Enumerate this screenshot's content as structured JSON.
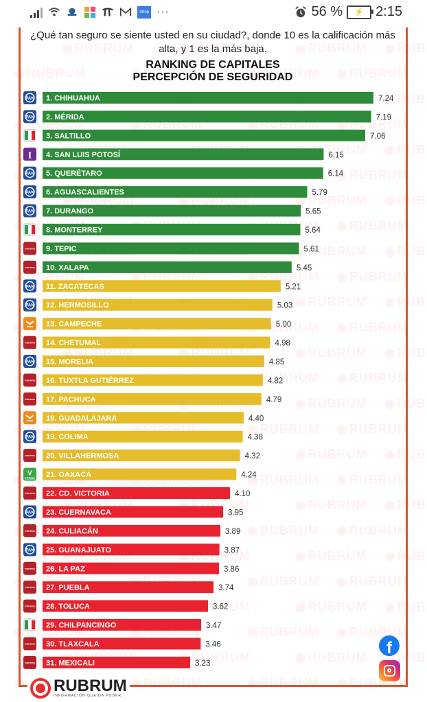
{
  "status_bar": {
    "battery_percent": "56 %",
    "time": "2:15",
    "icons": [
      "signal-icon",
      "wifi-icon",
      "app-icon",
      "grid-app-icon",
      "app-icon",
      "gmail-icon",
      "shop-icon",
      "more-icon",
      "alarm-icon",
      "battery-charging-icon"
    ],
    "shop_label": "Shop",
    "more_label": "···",
    "battery_glyph": "⚡"
  },
  "header": {
    "question": "¿Qué tan seguro se siente usted en su ciudad?, donde 10 es la calificación más alta, y  1 es la más baja.",
    "title_line1": "RANKING DE CAPITALES",
    "title_line2": "PERCEPCIÓN DE SEGURIDAD"
  },
  "watermark": "RUBRUM",
  "colors": {
    "green": "#2e8b3a",
    "yellow": "#e5bd2b",
    "red": "#e8232f",
    "frame": "#d9542b",
    "PAN": "#1f4e9c",
    "PRI": "#e0e0e0",
    "PT_IND": "#6a2c91",
    "MORENA": "#b3222a",
    "MC": "#f08a1c",
    "PVEM": "#3aa64a"
  },
  "chart_data": {
    "type": "bar",
    "orientation": "horizontal",
    "title": "RANKING DE CAPITALES PERCEPCIÓN DE SEGURIDAD",
    "subtitle": "¿Qué tan seguro se siente usted en su ciudad?, donde 10 es la calificación más alta, y  1 es la más baja.",
    "xlabel": "",
    "ylabel": "",
    "xlim": [
      0,
      7.24
    ],
    "grid": false,
    "legend": "none",
    "categories": [
      "1. CHIHUAHUA",
      "2. MÉRIDA",
      "3. SALTILLO",
      "4. SAN LUIS POTOSÍ",
      "5. QUERÉTARO",
      "6. AGUASCALIENTES",
      "7. DURANGO",
      "8. MONTERREY",
      "9. TEPIC",
      "10. XALAPA",
      "11. ZACATECAS",
      "12. HERMOSILLO",
      "13. CAMPECHE",
      "14. CHETUMAL",
      "15. MORELIA",
      "16. TUXTLA GUTIÉRREZ",
      "17. PACHUCA",
      "18. GUADALAJARA",
      "19. COLIMA",
      "20. VILLAHERMOSA",
      "21. OAXACA",
      "22. CD. VICTORIA",
      "23. CUERNAVACA",
      "24. CULIACÁN",
      "25. GUANAJUATO",
      "26. LA PAZ",
      "27. PUEBLA",
      "28. TOLUCA",
      "29. CHILPANCINGO",
      "30. TLAXCALA",
      "31. MEXICALI"
    ],
    "values": [
      7.24,
      7.19,
      7.06,
      6.15,
      6.14,
      5.79,
      5.65,
      5.64,
      5.61,
      5.45,
      5.21,
      5.03,
      5.0,
      4.98,
      4.85,
      4.82,
      4.79,
      4.4,
      4.38,
      4.32,
      4.24,
      4.1,
      3.95,
      3.89,
      3.87,
      3.86,
      3.74,
      3.62,
      3.47,
      3.46,
      3.23
    ],
    "value_labels": [
      "7.24",
      "7.19",
      "7.06",
      "6.15",
      "6.14",
      "5.79",
      "5.65",
      "5.64",
      "5.61",
      "5.45",
      "5.21",
      "5.03",
      "5.00",
      "4.98",
      "4.85",
      "4.82",
      "4.79",
      "4.40",
      "4.38",
      "4.32",
      "4.24",
      "4.10",
      "3.95",
      "3.89",
      "3.87",
      "3.86",
      "3.74",
      "3.62",
      "3.47",
      "3.46",
      "3.23"
    ],
    "tiers": [
      "green",
      "green",
      "green",
      "green",
      "green",
      "green",
      "green",
      "green",
      "green",
      "green",
      "yellow",
      "yellow",
      "yellow",
      "yellow",
      "yellow",
      "yellow",
      "yellow",
      "yellow",
      "yellow",
      "yellow",
      "yellow",
      "red",
      "red",
      "red",
      "red",
      "red",
      "red",
      "red",
      "red",
      "red",
      "red"
    ],
    "parties": [
      "PAN",
      "PAN",
      "PRI",
      "PT_IND",
      "PAN",
      "PAN",
      "PAN",
      "PRI",
      "MORENA",
      "MORENA",
      "PAN",
      "PAN",
      "MC",
      "MORENA",
      "PAN",
      "MORENA",
      "MORENA",
      "MC",
      "PAN",
      "MORENA",
      "PVEM",
      "MORENA",
      "PAN",
      "MORENA",
      "PAN",
      "MORENA",
      "MORENA",
      "MORENA",
      "PRI",
      "MORENA",
      "MORENA"
    ]
  },
  "party_labels": {
    "PAN": "PAN",
    "PRI": "PRI",
    "PT_IND": "I",
    "MORENA": "morena",
    "MC": "MC",
    "PVEM": "VERDE"
  },
  "social": {
    "facebook": "f"
  },
  "brand": {
    "name": "RUBRUM",
    "tagline": "INFORMACIÓN QUE DA PODER"
  }
}
